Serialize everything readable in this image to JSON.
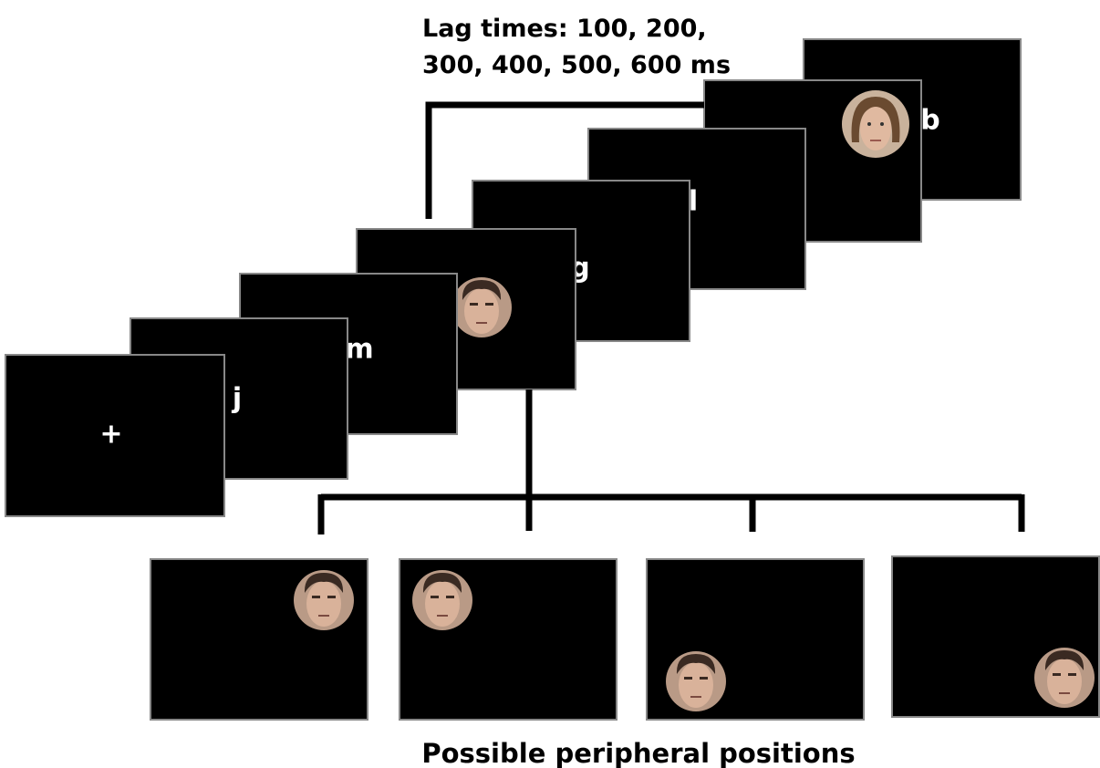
{
  "lag_label": {
    "lines": [
      "Lag times: 100, 200,",
      "300, 400, 500, 600 ms"
    ]
  },
  "sequence_symbols": [
    "+",
    "j",
    "m",
    "g",
    "l",
    "b"
  ],
  "caption": "Possible peripheral positions"
}
